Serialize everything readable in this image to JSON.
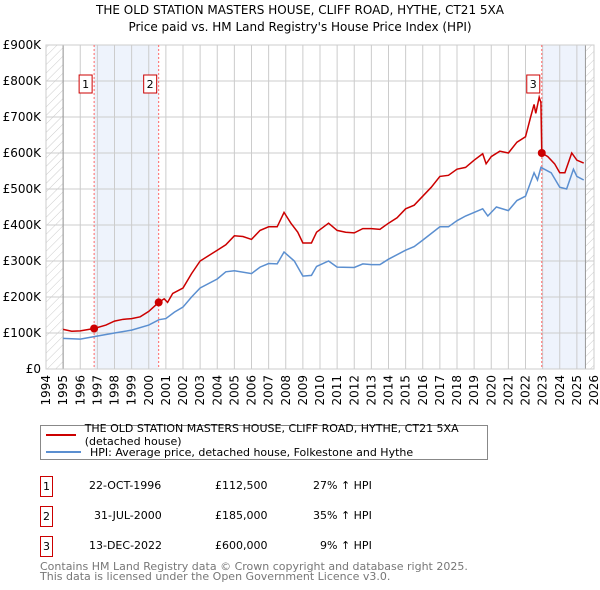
{
  "title_line1": "THE OLD STATION MASTERS HOUSE, CLIFF ROAD, HYTHE, CT21 5XA",
  "title_line2": "Price paid vs. HM Land Registry's House Price Index (HPI)",
  "chart_data": {
    "type": "line",
    "xlim": [
      1994,
      2026
    ],
    "ylim": [
      0,
      900000
    ],
    "yticks": [
      0,
      100000,
      200000,
      300000,
      400000,
      500000,
      600000,
      700000,
      800000,
      900000
    ],
    "ytick_labels": [
      "£0",
      "£100K",
      "£200K",
      "£300K",
      "£400K",
      "£500K",
      "£600K",
      "£700K",
      "£800K",
      "£900K"
    ],
    "xtick_labels": [
      "1994",
      "1995",
      "1996",
      "1997",
      "1998",
      "1999",
      "2000",
      "2001",
      "2002",
      "2003",
      "2004",
      "2005",
      "2006",
      "2007",
      "2008",
      "2009",
      "2010",
      "2011",
      "2012",
      "2013",
      "2014",
      "2015",
      "2016",
      "2017",
      "2018",
      "2019",
      "2020",
      "2021",
      "2022",
      "2023",
      "2024",
      "2025",
      "2026"
    ],
    "grid": true,
    "shaded_periods": [
      [
        1996.81,
        2000.58
      ],
      [
        2022.95,
        2025.5
      ]
    ],
    "hatched_periods": [
      [
        1994,
        1995
      ],
      [
        2025.5,
        2026
      ]
    ],
    "series": [
      {
        "name": "THE OLD STATION MASTERS HOUSE, CLIFF ROAD, HYTHE, CT21 5XA (detached house)",
        "color": "#cc0000",
        "x": [
          1995,
          1995.5,
          1996,
          1996.81,
          1997.5,
          1998,
          1998.5,
          1999,
          1999.5,
          2000,
          2000.58,
          2000.9,
          2001.1,
          2001.4,
          2002,
          2002.5,
          2003,
          2003.5,
          2004,
          2004.5,
          2005,
          2005.5,
          2006,
          2006.5,
          2007,
          2007.5,
          2007.9,
          2008.3,
          2008.7,
          2009,
          2009.5,
          2009.8,
          2010.5,
          2011,
          2011.5,
          2012,
          2012.5,
          2013,
          2013.5,
          2014,
          2014.5,
          2015,
          2015.5,
          2016,
          2016.5,
          2017,
          2017.5,
          2018,
          2018.5,
          2019,
          2019.5,
          2019.7,
          2020,
          2020.5,
          2021,
          2021.5,
          2022,
          2022.3,
          2022.5,
          2022.6,
          2022.8,
          2022.9,
          2022.95,
          2023.3,
          2023.7,
          2024,
          2024.3,
          2024.7,
          2025,
          2025.4
        ],
        "y": [
          110000,
          105000,
          106000,
          112500,
          122000,
          133000,
          138000,
          140000,
          145000,
          160000,
          185000,
          195000,
          185000,
          210000,
          225000,
          265000,
          300000,
          315000,
          330000,
          345000,
          370000,
          368000,
          360000,
          385000,
          395000,
          395000,
          435000,
          405000,
          380000,
          350000,
          350000,
          380000,
          405000,
          385000,
          380000,
          378000,
          390000,
          390000,
          388000,
          405000,
          420000,
          445000,
          455000,
          480000,
          505000,
          535000,
          538000,
          555000,
          560000,
          580000,
          598000,
          570000,
          590000,
          605000,
          600000,
          630000,
          645000,
          700000,
          735000,
          710000,
          755000,
          740000,
          600000,
          590000,
          570000,
          545000,
          545000,
          600000,
          580000,
          572000
        ]
      },
      {
        "name": "HPI: Average price, detached house, Folkestone and Hythe",
        "color": "#5b8fd0",
        "x": [
          1995,
          1996,
          1996.81,
          1998,
          1999,
          2000,
          2000.6,
          2001,
          2001.5,
          2002,
          2002.5,
          2003,
          2004,
          2004.5,
          2005,
          2006,
          2006.5,
          2007,
          2007.5,
          2007.9,
          2008.5,
          2009,
          2009.5,
          2009.8,
          2010.5,
          2011,
          2012,
          2012.5,
          2013,
          2013.5,
          2014,
          2015,
          2015.5,
          2016,
          2017,
          2017.5,
          2018,
          2018.5,
          2019,
          2019.5,
          2019.8,
          2020.3,
          2021,
          2021.5,
          2022,
          2022.5,
          2022.7,
          2022.9,
          2023.5,
          2024,
          2024.4,
          2024.8,
          2025,
          2025.4
        ],
        "y": [
          85000,
          83000,
          90000,
          100000,
          108000,
          122000,
          137000,
          140000,
          158000,
          172000,
          200000,
          225000,
          250000,
          270000,
          273000,
          265000,
          283000,
          293000,
          292000,
          325000,
          300000,
          258000,
          260000,
          285000,
          300000,
          283000,
          282000,
          292000,
          290000,
          290000,
          305000,
          330000,
          340000,
          358000,
          395000,
          395000,
          412000,
          425000,
          435000,
          445000,
          425000,
          450000,
          440000,
          468000,
          480000,
          545000,
          525000,
          560000,
          545000,
          505000,
          500000,
          555000,
          535000,
          525000
        ]
      }
    ],
    "transactions": [
      {
        "label": "1",
        "x": 1996.81,
        "y": 112500,
        "date": "22-OCT-1996",
        "price": "£112,500",
        "hpi": "27% ↑ HPI"
      },
      {
        "label": "2",
        "x": 2000.58,
        "y": 185000,
        "date": "31-JUL-2000",
        "price": "£185,000",
        "hpi": "35% ↑ HPI"
      },
      {
        "label": "3",
        "x": 2022.95,
        "y": 600000,
        "date": "13-DEC-2022",
        "price": "£600,000",
        "hpi": "9% ↑ HPI"
      }
    ]
  },
  "footer_line1": "Contains HM Land Registry data © Crown copyright and database right 2025.",
  "footer_line2": "This data is licensed under the Open Government Licence v3.0."
}
